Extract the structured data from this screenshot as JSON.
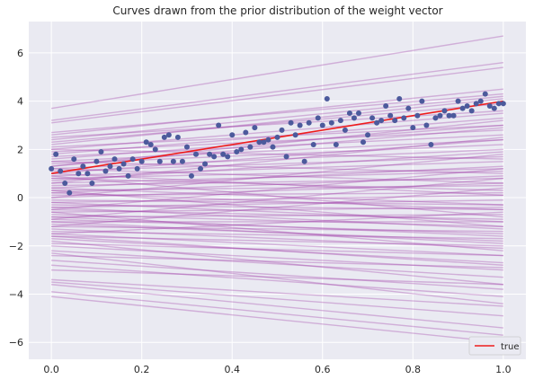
{
  "chart_data": {
    "type": "line",
    "title": "Curves drawn from the prior distribution of the weight vector",
    "xlabel": "",
    "ylabel": "",
    "xlim": [
      -0.05,
      1.05
    ],
    "ylim": [
      -6.7,
      7.3
    ],
    "x_ticks": [
      "0.0",
      "0.2",
      "0.4",
      "0.6",
      "0.8",
      "1.0"
    ],
    "x_tick_values": [
      0.0,
      0.2,
      0.4,
      0.6,
      0.8,
      1.0
    ],
    "y_ticks": [
      "−6",
      "−4",
      "−2",
      "0",
      "2",
      "4",
      "6"
    ],
    "y_tick_values": [
      -6,
      -4,
      -2,
      0,
      2,
      4,
      6
    ],
    "grid": true,
    "background": "#eaeaf2",
    "legend": {
      "position": "bottom-right",
      "label": "true"
    },
    "true_line": {
      "name": "true",
      "x": [
        0,
        1
      ],
      "y": [
        1.0,
        4.0
      ],
      "color": "#ee1c1c"
    },
    "scatter": {
      "color": "#4c5a9c",
      "points": [
        [
          0.0,
          1.2
        ],
        [
          0.01,
          1.8
        ],
        [
          0.02,
          1.1
        ],
        [
          0.03,
          0.6
        ],
        [
          0.04,
          0.2
        ],
        [
          0.05,
          1.6
        ],
        [
          0.06,
          1.0
        ],
        [
          0.07,
          1.3
        ],
        [
          0.08,
          1.0
        ],
        [
          0.09,
          0.6
        ],
        [
          0.1,
          1.5
        ],
        [
          0.11,
          1.9
        ],
        [
          0.12,
          1.1
        ],
        [
          0.13,
          1.3
        ],
        [
          0.14,
          1.6
        ],
        [
          0.15,
          1.2
        ],
        [
          0.16,
          1.4
        ],
        [
          0.17,
          0.9
        ],
        [
          0.18,
          1.6
        ],
        [
          0.19,
          1.2
        ],
        [
          0.2,
          1.5
        ],
        [
          0.21,
          2.3
        ],
        [
          0.22,
          2.2
        ],
        [
          0.23,
          2.0
        ],
        [
          0.24,
          1.5
        ],
        [
          0.25,
          2.5
        ],
        [
          0.26,
          2.6
        ],
        [
          0.27,
          1.5
        ],
        [
          0.28,
          2.5
        ],
        [
          0.29,
          1.5
        ],
        [
          0.3,
          2.1
        ],
        [
          0.31,
          0.9
        ],
        [
          0.32,
          1.8
        ],
        [
          0.33,
          1.2
        ],
        [
          0.34,
          1.4
        ],
        [
          0.35,
          1.8
        ],
        [
          0.36,
          1.7
        ],
        [
          0.37,
          3.0
        ],
        [
          0.38,
          1.8
        ],
        [
          0.39,
          1.7
        ],
        [
          0.4,
          2.6
        ],
        [
          0.41,
          1.9
        ],
        [
          0.42,
          2.0
        ],
        [
          0.43,
          2.7
        ],
        [
          0.44,
          2.1
        ],
        [
          0.45,
          2.9
        ],
        [
          0.46,
          2.3
        ],
        [
          0.47,
          2.3
        ],
        [
          0.48,
          2.4
        ],
        [
          0.49,
          2.1
        ],
        [
          0.5,
          2.5
        ],
        [
          0.51,
          2.8
        ],
        [
          0.52,
          1.7
        ],
        [
          0.53,
          3.1
        ],
        [
          0.54,
          2.6
        ],
        [
          0.55,
          3.0
        ],
        [
          0.56,
          1.5
        ],
        [
          0.57,
          3.1
        ],
        [
          0.58,
          2.2
        ],
        [
          0.59,
          3.3
        ],
        [
          0.6,
          3.0
        ],
        [
          0.61,
          4.1
        ],
        [
          0.62,
          3.1
        ],
        [
          0.63,
          2.2
        ],
        [
          0.64,
          3.2
        ],
        [
          0.65,
          2.8
        ],
        [
          0.66,
          3.5
        ],
        [
          0.67,
          3.3
        ],
        [
          0.68,
          3.5
        ],
        [
          0.69,
          2.3
        ],
        [
          0.7,
          2.6
        ],
        [
          0.71,
          3.3
        ],
        [
          0.72,
          3.1
        ],
        [
          0.73,
          3.2
        ],
        [
          0.74,
          3.8
        ],
        [
          0.75,
          3.4
        ],
        [
          0.76,
          3.2
        ],
        [
          0.77,
          4.1
        ],
        [
          0.78,
          3.3
        ],
        [
          0.79,
          3.7
        ],
        [
          0.8,
          2.9
        ],
        [
          0.81,
          3.4
        ],
        [
          0.82,
          4.0
        ],
        [
          0.83,
          3.0
        ],
        [
          0.84,
          2.2
        ],
        [
          0.85,
          3.3
        ],
        [
          0.86,
          3.4
        ],
        [
          0.87,
          3.6
        ],
        [
          0.88,
          3.4
        ],
        [
          0.89,
          3.4
        ],
        [
          0.9,
          4.0
        ],
        [
          0.91,
          3.7
        ],
        [
          0.92,
          3.8
        ],
        [
          0.93,
          3.6
        ],
        [
          0.94,
          3.9
        ],
        [
          0.95,
          4.0
        ],
        [
          0.96,
          4.3
        ],
        [
          0.97,
          3.8
        ],
        [
          0.98,
          3.7
        ],
        [
          0.99,
          3.9
        ],
        [
          1.0,
          3.9
        ]
      ]
    },
    "prior_curves": {
      "color": "#a040a8",
      "opacity": 0.35,
      "lines": [
        [
          3.7,
          6.7
        ],
        [
          3.2,
          5.6
        ],
        [
          3.1,
          5.4
        ],
        [
          2.6,
          4.5
        ],
        [
          2.7,
          4.3
        ],
        [
          2.5,
          3.6
        ],
        [
          2.4,
          4.2
        ],
        [
          2.3,
          3.9
        ],
        [
          2.2,
          4.1
        ],
        [
          2.1,
          3.0
        ],
        [
          2.0,
          3.5
        ],
        [
          1.9,
          2.8
        ],
        [
          1.8,
          3.3
        ],
        [
          1.7,
          2.6
        ],
        [
          1.6,
          3.0
        ],
        [
          1.5,
          2.4
        ],
        [
          1.4,
          2.2
        ],
        [
          1.3,
          2.9
        ],
        [
          1.2,
          2.0
        ],
        [
          1.1,
          1.7
        ],
        [
          1.0,
          2.4
        ],
        [
          0.9,
          1.5
        ],
        [
          0.8,
          1.2
        ],
        [
          0.7,
          1.9
        ],
        [
          0.6,
          1.1
        ],
        [
          0.5,
          0.8
        ],
        [
          0.4,
          1.3
        ],
        [
          0.3,
          0.5
        ],
        [
          0.2,
          0.9
        ],
        [
          0.1,
          0.2
        ],
        [
          0.0,
          0.6
        ],
        [
          -0.1,
          -0.3
        ],
        [
          -0.2,
          0.1
        ],
        [
          -0.3,
          -0.5
        ],
        [
          -0.4,
          -0.1
        ],
        [
          -0.5,
          -0.9
        ],
        [
          -0.6,
          -0.4
        ],
        [
          -0.7,
          -1.2
        ],
        [
          -0.8,
          -0.7
        ],
        [
          -0.9,
          -1.5
        ],
        [
          -1.0,
          -1.0
        ],
        [
          -1.1,
          -1.8
        ],
        [
          -1.2,
          -1.4
        ],
        [
          -1.3,
          -2.1
        ],
        [
          -1.4,
          -1.7
        ],
        [
          -1.5,
          -2.4
        ],
        [
          -1.6,
          -2.0
        ],
        [
          -1.7,
          -2.7
        ],
        [
          -1.9,
          -2.4
        ],
        [
          -2.0,
          -3.0
        ],
        [
          -2.2,
          -3.3
        ],
        [
          -2.4,
          -2.9
        ],
        [
          -2.6,
          -3.8
        ],
        [
          -2.8,
          -4.1
        ],
        [
          -3.0,
          -3.6
        ],
        [
          -3.4,
          -4.5
        ],
        [
          -3.6,
          -5.4
        ],
        [
          -3.9,
          -5.7
        ],
        [
          -4.1,
          -6.0
        ],
        [
          -3.5,
          -4.9
        ],
        [
          1.5,
          1.0
        ],
        [
          0.8,
          0.3
        ],
        [
          0.2,
          -0.5
        ],
        [
          -0.4,
          -1.3
        ],
        [
          -1.0,
          -1.9
        ],
        [
          1.2,
          0.6
        ],
        [
          0.4,
          -0.3
        ],
        [
          -0.8,
          -1.6
        ],
        [
          -1.6,
          -2.8
        ],
        [
          2.0,
          1.6
        ],
        [
          1.0,
          0.1
        ],
        [
          -0.2,
          -1.0
        ],
        [
          0.6,
          2.5
        ],
        [
          -0.5,
          1.2
        ],
        [
          -1.2,
          0.4
        ],
        [
          0.0,
          1.8
        ],
        [
          1.3,
          3.2
        ],
        [
          -0.9,
          0.8
        ],
        [
          -1.5,
          -0.6
        ],
        [
          0.3,
          -1.2
        ],
        [
          -2.3,
          -4.4
        ],
        [
          -1.8,
          -3.6
        ],
        [
          0.9,
          -0.8
        ],
        [
          -0.6,
          -2.2
        ]
      ]
    }
  }
}
